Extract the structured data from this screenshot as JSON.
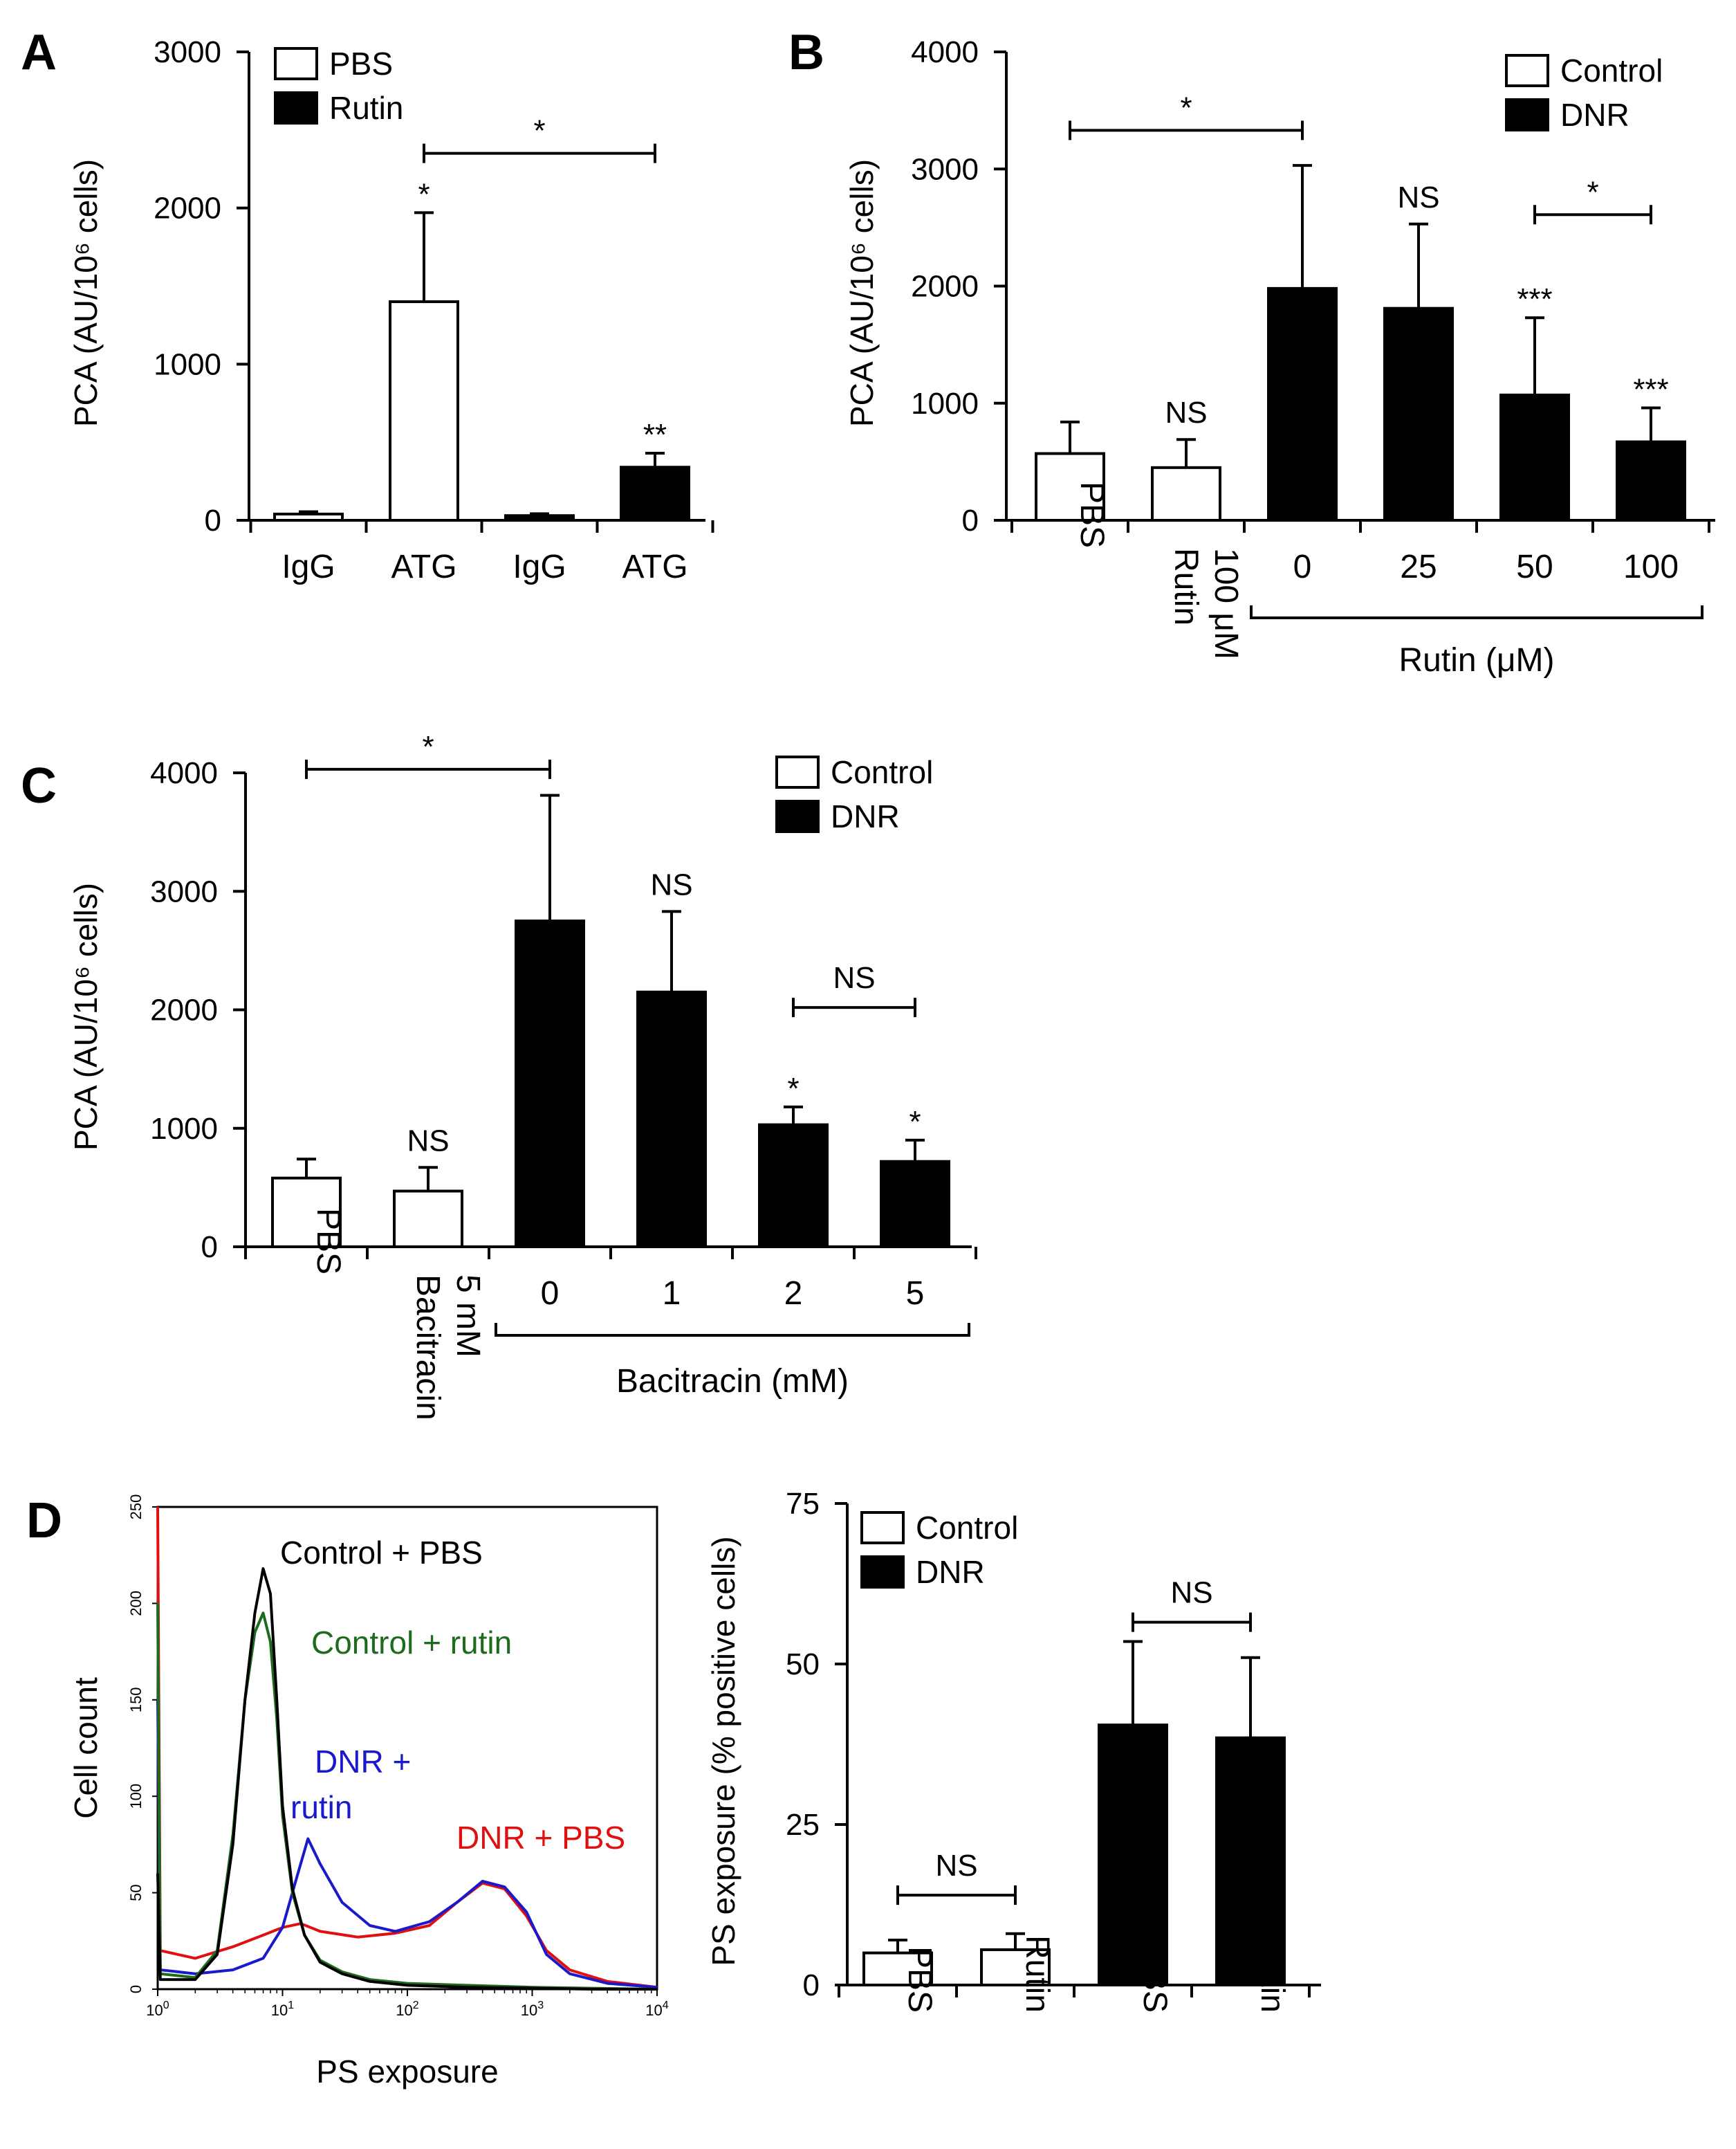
{
  "colors": {
    "control_pbs": "#000000",
    "control_rutin": "#1e6b1e",
    "dnr_rutin": "#1a1acc",
    "dnr_pbs": "#e01010"
  },
  "chart_data": [
    {
      "id": "A",
      "type": "bar",
      "panel_label": "A",
      "ylabel": "PCA (AU/10⁶ cells)",
      "ylim": [
        0,
        3000
      ],
      "yticks": [
        0,
        1000,
        2000,
        3000
      ],
      "categories": [
        "IgG",
        "ATG",
        "IgG",
        "ATG"
      ],
      "values": [
        40,
        1400,
        30,
        340
      ],
      "errors": [
        15,
        570,
        12,
        90
      ],
      "fills": [
        "white",
        "white",
        "black",
        "black"
      ],
      "annotations": [
        "",
        "*",
        "",
        "**"
      ],
      "legend": [
        {
          "label": "PBS",
          "fill": "white"
        },
        {
          "label": "Rutin",
          "fill": "black"
        }
      ],
      "brackets": [
        {
          "from": 1,
          "to": 3,
          "label": "*",
          "y": 2350
        }
      ],
      "rotated_labels": false,
      "groups": []
    },
    {
      "id": "B",
      "type": "bar",
      "panel_label": "B",
      "ylabel": "PCA (AU/10⁶ cells)",
      "ylim": [
        0,
        4000
      ],
      "yticks": [
        0,
        1000,
        2000,
        3000,
        4000
      ],
      "categories": [
        "PBS",
        "100 μM Rutin",
        "0",
        "25",
        "50",
        "100"
      ],
      "values": [
        570,
        450,
        1980,
        1810,
        1070,
        670
      ],
      "errors": [
        270,
        240,
        1050,
        720,
        660,
        290
      ],
      "fills": [
        "white",
        "white",
        "black",
        "black",
        "black",
        "black"
      ],
      "annotations": [
        "",
        "NS",
        "",
        "NS",
        "***",
        "***"
      ],
      "legend": [
        {
          "label": "Control",
          "fill": "white"
        },
        {
          "label": "DNR",
          "fill": "black"
        }
      ],
      "brackets": [
        {
          "from": 0,
          "to": 2,
          "label": "*",
          "y": 3330
        },
        {
          "from": 4,
          "to": 5,
          "label": "*",
          "y": 2610
        }
      ],
      "rotated_labels": true,
      "groups": [
        {
          "from": 2,
          "to": 5,
          "label": "Rutin (μM)"
        }
      ]
    },
    {
      "id": "C",
      "type": "bar",
      "panel_label": "C",
      "ylabel": "PCA (AU/10⁶ cells)",
      "ylim": [
        0,
        4000
      ],
      "yticks": [
        0,
        1000,
        2000,
        3000,
        4000
      ],
      "categories": [
        "PBS",
        "5 mM Bacitracin",
        "0",
        "1",
        "2",
        "5"
      ],
      "values": [
        580,
        470,
        2750,
        2150,
        1030,
        720
      ],
      "errors": [
        160,
        200,
        1060,
        680,
        150,
        180
      ],
      "fills": [
        "white",
        "white",
        "black",
        "black",
        "black",
        "black"
      ],
      "annotations": [
        "",
        "NS",
        "",
        "NS",
        "*",
        "*"
      ],
      "legend": [
        {
          "label": "Control",
          "fill": "white"
        },
        {
          "label": "DNR",
          "fill": "black"
        }
      ],
      "brackets": [
        {
          "from": 0,
          "to": 2,
          "label": "*",
          "y": 4030
        },
        {
          "from": 4,
          "to": 5,
          "label": "NS",
          "y": 2020
        }
      ],
      "rotated_labels": true,
      "groups": [
        {
          "from": 2,
          "to": 5,
          "label": "Bacitracin (mM)"
        }
      ]
    },
    {
      "id": "D-hist",
      "type": "line",
      "panel_label": "D",
      "title": "",
      "xlabel": "PS exposure",
      "ylabel": "Cell count",
      "xscale": "log",
      "xlim": [
        1,
        10000
      ],
      "ylim": [
        0,
        250
      ],
      "xticks": [
        {
          "base": "10",
          "exp": "0"
        },
        {
          "base": "10",
          "exp": "1"
        },
        {
          "base": "10",
          "exp": "2"
        },
        {
          "base": "10",
          "exp": "3"
        },
        {
          "base": "10",
          "exp": "4"
        }
      ],
      "yticks": [
        0,
        50,
        100,
        150,
        200,
        250
      ],
      "series": [
        {
          "name": "DNR + PBS",
          "color": "#e01010",
          "x": [
            1,
            1.05,
            2,
            4,
            7,
            10,
            14,
            20,
            40,
            80,
            150,
            250,
            400,
            600,
            900,
            1300,
            2000,
            4000,
            10000
          ],
          "y": [
            250,
            20,
            16,
            22,
            28,
            32,
            34,
            30,
            27,
            29,
            33,
            45,
            55,
            52,
            38,
            20,
            10,
            4,
            1
          ]
        },
        {
          "name": "DNR + rutin",
          "color": "#1a1acc",
          "x": [
            1,
            1.05,
            2,
            4,
            7,
            10,
            13,
            16,
            20,
            30,
            50,
            80,
            150,
            250,
            400,
            600,
            900,
            1300,
            2000,
            4000,
            10000
          ],
          "y": [
            150,
            10,
            8,
            10,
            16,
            32,
            58,
            78,
            65,
            45,
            33,
            30,
            35,
            45,
            56,
            53,
            40,
            18,
            8,
            3,
            1
          ]
        },
        {
          "name": "Control + rutin",
          "color": "#1e6b1e",
          "x": [
            1,
            1.05,
            2,
            3,
            4,
            5,
            6,
            7,
            8,
            9,
            10,
            12,
            15,
            20,
            30,
            50,
            100,
            300,
            1000,
            3000,
            10000
          ],
          "y": [
            200,
            8,
            6,
            20,
            80,
            150,
            185,
            195,
            180,
            140,
            90,
            50,
            28,
            15,
            9,
            5,
            3,
            2,
            1,
            0.5,
            0
          ]
        },
        {
          "name": "Control + PBS",
          "color": "#000000",
          "x": [
            1,
            1.05,
            2,
            3,
            4,
            5,
            6,
            7,
            8,
            9,
            10,
            12,
            15,
            20,
            30,
            50,
            100,
            300,
            1000,
            3000,
            10000
          ],
          "y": [
            60,
            5,
            5,
            18,
            75,
            150,
            195,
            218,
            205,
            150,
            95,
            52,
            28,
            14,
            8,
            4,
            2,
            1,
            0.5,
            0,
            0
          ]
        }
      ],
      "labels": [
        {
          "text": "Control + PBS",
          "color": "#000000"
        },
        {
          "text": "Control + rutin",
          "color": "#1e6b1e"
        },
        {
          "text": "DNR +",
          "color": "#1a1acc"
        },
        {
          "text": "rutin",
          "color": "#1a1acc"
        },
        {
          "text": "DNR + PBS",
          "color": "#e01010"
        }
      ]
    },
    {
      "id": "D-bar",
      "type": "bar",
      "panel_label": "",
      "ylabel": "PS exposure (% positive cells)",
      "ylim": [
        0,
        75
      ],
      "yticks": [
        0,
        25,
        50,
        75
      ],
      "categories": [
        "PBS",
        "Rutin",
        "PBS",
        "Rutin"
      ],
      "values": [
        5,
        5.5,
        40.5,
        38.5
      ],
      "errors": [
        2,
        2.5,
        13,
        12.5
      ],
      "fills": [
        "white",
        "white",
        "black",
        "black"
      ],
      "annotations": [
        "",
        "",
        "",
        ""
      ],
      "legend": [
        {
          "label": "Control",
          "fill": "white"
        },
        {
          "label": "DNR",
          "fill": "black"
        }
      ],
      "brackets": [
        {
          "from": 0,
          "to": 1,
          "label": "NS",
          "y": 14
        },
        {
          "from": 2,
          "to": 3,
          "label": "NS",
          "y": 56.5
        }
      ],
      "rotated_labels": true,
      "groups": []
    }
  ]
}
